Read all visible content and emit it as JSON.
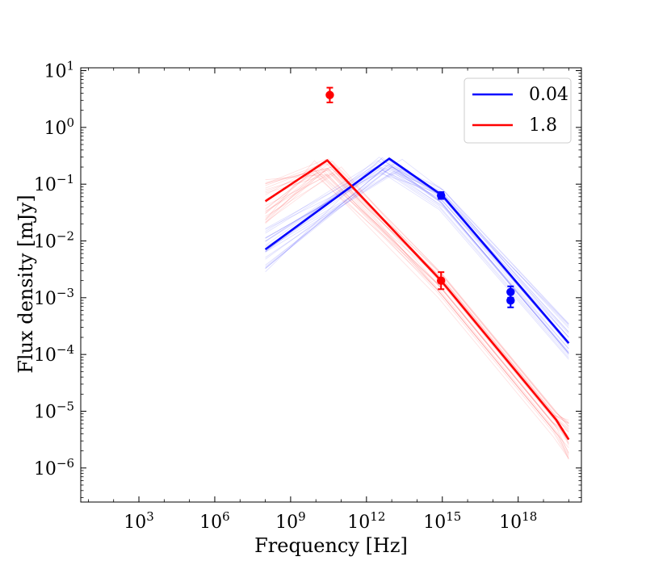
{
  "chart_data": {
    "type": "line",
    "xscale": "log",
    "yscale": "log",
    "xlabel": "Frequency [Hz]",
    "ylabel": "Flux density [mJy]",
    "xlim_log10": [
      0.7,
      20.5
    ],
    "ylim_log10": [
      -6.6,
      1.05
    ],
    "x_ticks": [
      {
        "exp": 3,
        "base": "10",
        "sup": "3"
      },
      {
        "exp": 6,
        "base": "10",
        "sup": "6"
      },
      {
        "exp": 9,
        "base": "10",
        "sup": "9"
      },
      {
        "exp": 12,
        "base": "10",
        "sup": "12"
      },
      {
        "exp": 15,
        "base": "10",
        "sup": "15"
      },
      {
        "exp": 18,
        "base": "10",
        "sup": "18"
      }
    ],
    "y_ticks": [
      {
        "exp": 1,
        "base": "10",
        "sup": "1"
      },
      {
        "exp": 0,
        "base": "10",
        "sup": "0"
      },
      {
        "exp": -1,
        "base": "10",
        "sup": "−1"
      },
      {
        "exp": -2,
        "base": "10",
        "sup": "−2"
      },
      {
        "exp": -3,
        "base": "10",
        "sup": "−3"
      },
      {
        "exp": -4,
        "base": "10",
        "sup": "−4"
      },
      {
        "exp": -5,
        "base": "10",
        "sup": "−5"
      },
      {
        "exp": -6,
        "base": "10",
        "sup": "−6"
      }
    ],
    "legend": {
      "position": "top-right"
    },
    "series": [
      {
        "name": "0.04",
        "color": "#0000ff",
        "model_log10": [
          [
            8.0,
            -2.15
          ],
          [
            12.9,
            -0.55
          ],
          [
            15.0,
            -1.2
          ],
          [
            20.0,
            -3.8
          ]
        ],
        "points": [
          {
            "x_log10": 14.95,
            "y_log10": -1.2,
            "yerr_log10": 0.06
          },
          {
            "x_log10": 17.7,
            "y_log10": -2.9,
            "yerr_log10": 0.1
          },
          {
            "x_log10": 17.7,
            "y_log10": -3.05,
            "yerr_log10": 0.12
          }
        ]
      },
      {
        "name": "1.8",
        "color": "#ff0000",
        "model_log10": [
          [
            8.0,
            -1.3
          ],
          [
            10.45,
            -0.58
          ],
          [
            14.95,
            -2.7
          ],
          [
            19.5,
            -5.15
          ],
          [
            20.0,
            -5.5
          ]
        ],
        "points": [
          {
            "x_log10": 10.55,
            "y_log10": 0.57,
            "yerr_log10": 0.13
          },
          {
            "x_log10": 14.95,
            "y_log10": -2.7,
            "yerr_log10": 0.15
          }
        ]
      }
    ]
  }
}
